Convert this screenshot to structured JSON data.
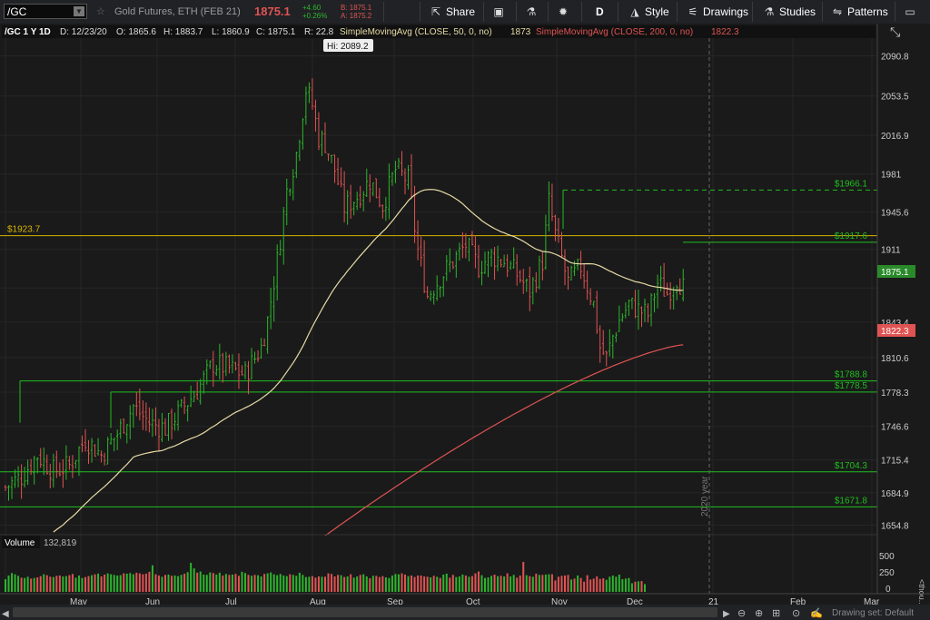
{
  "toolbar": {
    "symbol": "/GC",
    "description": "Gold Futures, ETH (FEB 21)",
    "last": "1875.1",
    "change": "+4.60",
    "change_pct": "+0.26%",
    "bid": "B: 1875.1",
    "ask": "A: 1875.2",
    "share": "Share",
    "period": "D",
    "style": "Style",
    "drawings": "Drawings",
    "studies": "Studies",
    "patterns": "Patterns"
  },
  "header": {
    "sym": "/GC 1 Y 1D",
    "date": "D: 12/23/20",
    "open": "O: 1865.6",
    "high": "H: 1883.7",
    "low": "L: 1860.9",
    "close": "C: 1875.1",
    "range": "R: 22.8",
    "sma50": "SimpleMovingAvg (CLOSE, 50, 0, no)",
    "sma50_val": "1873",
    "sma200": "SimpleMovingAvg (CLOSE, 200, 0, no)",
    "sma200_val": "1822.3"
  },
  "annotations": {
    "hi": "Hi: 2089.2",
    "year": "2020 year",
    "lines": [
      "$1923.7",
      "$1966.1",
      "$1917.6",
      "$1788.8",
      "$1778.5",
      "$1704.3",
      "$1671.8"
    ]
  },
  "price_tags": {
    "last": "1875.1",
    "sma200": "1822.3"
  },
  "volume": {
    "label": "Volume",
    "value": "132,819",
    "ticks": [
      "500",
      "250",
      "0"
    ],
    "unit": "<thou..."
  },
  "drawing_set": "Drawing set: Default",
  "colors": {
    "up": "#2db52d",
    "down": "#e05353",
    "sma50": "#e6dba6",
    "sma200": "#e05353",
    "hline": "#1fbf1f",
    "yline": "#d6b400"
  },
  "chart_data": {
    "type": "candlestick",
    "x_ticks": [
      "May",
      "Jun",
      "Jul",
      "Aug",
      "Sep",
      "Oct",
      "Nov",
      "Dec",
      "21",
      "Feb",
      "Mar"
    ],
    "y_ticks": [
      2090.8,
      2053.5,
      2016.9,
      1981,
      1945.6,
      1911,
      1875.1,
      1843.4,
      1810.6,
      1778.3,
      1746.6,
      1715.4,
      1684.9,
      1654.8
    ],
    "ylim": [
      1644,
      2110
    ],
    "horizontal_levels": [
      1923.7,
      1966.1,
      1917.6,
      1788.8,
      1778.5,
      1704.3,
      1671.8
    ],
    "close_path": [
      [
        0,
        1690
      ],
      [
        5,
        1700
      ],
      [
        10,
        1720
      ],
      [
        15,
        1705
      ],
      [
        20,
        1710
      ],
      [
        25,
        1735
      ],
      [
        30,
        1720
      ],
      [
        35,
        1740
      ],
      [
        40,
        1765
      ],
      [
        45,
        1750
      ],
      [
        50,
        1745
      ],
      [
        55,
        1762
      ],
      [
        60,
        1780
      ],
      [
        65,
        1805
      ],
      [
        70,
        1800
      ],
      [
        75,
        1795
      ],
      [
        80,
        1820
      ],
      [
        82,
        1845
      ],
      [
        85,
        1900
      ],
      [
        88,
        1965
      ],
      [
        91,
        2000
      ],
      [
        94,
        2060
      ],
      [
        96,
        2045
      ],
      [
        98,
        2015
      ],
      [
        100,
        2010
      ],
      [
        103,
        1985
      ],
      [
        106,
        1950
      ],
      [
        110,
        1960
      ],
      [
        114,
        1975
      ],
      [
        118,
        1952
      ],
      [
        122,
        1985
      ],
      [
        126,
        1975
      ],
      [
        129,
        1910
      ],
      [
        132,
        1868
      ],
      [
        136,
        1885
      ],
      [
        140,
        1900
      ],
      [
        144,
        1915
      ],
      [
        148,
        1895
      ],
      [
        152,
        1905
      ],
      [
        156,
        1900
      ],
      [
        160,
        1888
      ],
      [
        164,
        1872
      ],
      [
        168,
        1900
      ],
      [
        170,
        1955
      ],
      [
        172,
        1925
      ],
      [
        176,
        1880
      ],
      [
        180,
        1895
      ],
      [
        184,
        1860
      ],
      [
        186,
        1820
      ],
      [
        188,
        1810
      ],
      [
        190,
        1830
      ],
      [
        192,
        1845
      ],
      [
        195,
        1860
      ],
      [
        198,
        1855
      ],
      [
        201,
        1850
      ],
      [
        204,
        1880
      ],
      [
        207,
        1870
      ],
      [
        210,
        1885
      ],
      [
        212,
        1875
      ]
    ],
    "volume_values": [
      205,
      265,
      305,
      285,
      260,
      230,
      225,
      245,
      215,
      225,
      235,
      255,
      285,
      270,
      245,
      240,
      260,
      265,
      250,
      255,
      270,
      290,
      230,
      265,
      225,
      240,
      255,
      270,
      285,
      295,
      250,
      280,
      300,
      285,
      275,
      265,
      270,
      300,
      295,
      305,
      285,
      310,
      300,
      285,
      295,
      325,
      430,
      285,
      265,
      245,
      275,
      280,
      260,
      265,
      255,
      275,
      295,
      320,
      470,
      380,
      310,
      330,
      280,
      275,
      315,
      305,
      280,
      310,
      265,
      290,
      275,
      280,
      290,
      260,
      325,
      305,
      275,
      260,
      275,
      270,
      250,
      290,
      300,
      315,
      285,
      270,
      290,
      265,
      255,
      285,
      275,
      260,
      310,
      275,
      240,
      245,
      255,
      230,
      250,
      245,
      245,
      300,
      290,
      250,
      275,
      270,
      240,
      250,
      285,
      230,
      250,
      275,
      285,
      250,
      220,
      260,
      260,
      240,
      255,
      235,
      225,
      265,
      290,
      285,
      300,
      280,
      255,
      265,
      240,
      265,
      265,
      250,
      245,
      235,
      260,
      245,
      225,
      280,
      295,
      230,
      275,
      240,
      250,
      280,
      265,
      245,
      255,
      300,
      330,
      270,
      225,
      235,
      260,
      280,
      255,
      260,
      250,
      300,
      250,
      275,
      230,
      265,
      485,
      270,
      255,
      245,
      295,
      275,
      275,
      280,
      285,
      285,
      185,
      245,
      260,
      265,
      275,
      200,
      215,
      265,
      225,
      165,
      270,
      200,
      215,
      250,
      210,
      220,
      195,
      245,
      265,
      245,
      280,
      205,
      215,
      225,
      140,
      165,
      170,
      175,
      125
    ]
  }
}
